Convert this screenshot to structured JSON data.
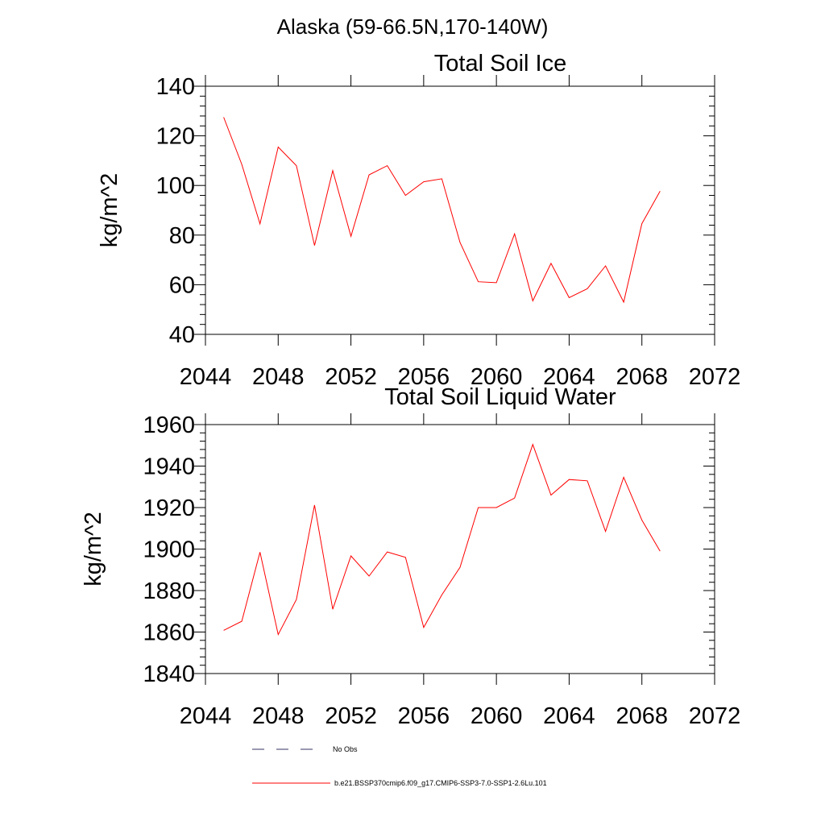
{
  "main_title": "Alaska (59-66.5N,170-140W)",
  "legend": {
    "entries": [
      {
        "label": "No Obs",
        "color": "#333366",
        "dash": true
      },
      {
        "label": "b.e21.BSSP370cmip6.f09_g17.CMIP6-SSP3-7.0-SSP1-2.6Lu.101",
        "color": "#ff0000",
        "dash": false
      }
    ]
  },
  "chart_data": [
    {
      "type": "line",
      "title": "Total Soil Ice",
      "xlabel": "",
      "ylabel": "kg/m^2",
      "xlim": [
        2044,
        2072
      ],
      "ylim": [
        40,
        140
      ],
      "xticks": [
        2044,
        2048,
        2052,
        2056,
        2060,
        2064,
        2068,
        2072
      ],
      "yticks": [
        40,
        60,
        80,
        100,
        120,
        140
      ],
      "grid": false,
      "series": [
        {
          "color": "#ff0000",
          "x": [
            2045,
            2046,
            2047,
            2048,
            2049,
            2050,
            2051,
            2052,
            2053,
            2054,
            2055,
            2056,
            2057,
            2058,
            2059,
            2060,
            2061,
            2062,
            2063,
            2064,
            2065,
            2066,
            2067,
            2068,
            2069
          ],
          "values": [
            127.5,
            108.5,
            84.5,
            115.5,
            108.0,
            75.8,
            106.0,
            79.5,
            104.3,
            108.0,
            96.0,
            101.5,
            102.7,
            77.0,
            61.2,
            60.8,
            80.5,
            53.5,
            68.6,
            54.8,
            58.4,
            67.6,
            53.0,
            84.6,
            97.7
          ]
        }
      ]
    },
    {
      "type": "line",
      "title": "Total Soil Liquid Water",
      "xlabel": "",
      "ylabel": "kg/m^2",
      "xlim": [
        2044,
        2072
      ],
      "ylim": [
        1840,
        1960
      ],
      "xticks": [
        2044,
        2048,
        2052,
        2056,
        2060,
        2064,
        2068,
        2072
      ],
      "yticks": [
        1840,
        1860,
        1880,
        1900,
        1920,
        1940,
        1960
      ],
      "grid": false,
      "series": [
        {
          "color": "#ff0000",
          "x": [
            2045,
            2046,
            2047,
            2048,
            2049,
            2050,
            2051,
            2052,
            2053,
            2054,
            2055,
            2056,
            2057,
            2058,
            2059,
            2060,
            2061,
            2062,
            2063,
            2064,
            2065,
            2066,
            2067,
            2068,
            2069
          ],
          "values": [
            1860.8,
            1865.2,
            1898.5,
            1858.8,
            1875.7,
            1921.2,
            1871.0,
            1896.7,
            1887.0,
            1898.6,
            1896.0,
            1862.2,
            1877.9,
            1891.2,
            1920.0,
            1920.0,
            1924.6,
            1950.4,
            1926.0,
            1933.5,
            1932.9,
            1908.5,
            1934.6,
            1914.0,
            1899.0
          ]
        }
      ]
    }
  ]
}
